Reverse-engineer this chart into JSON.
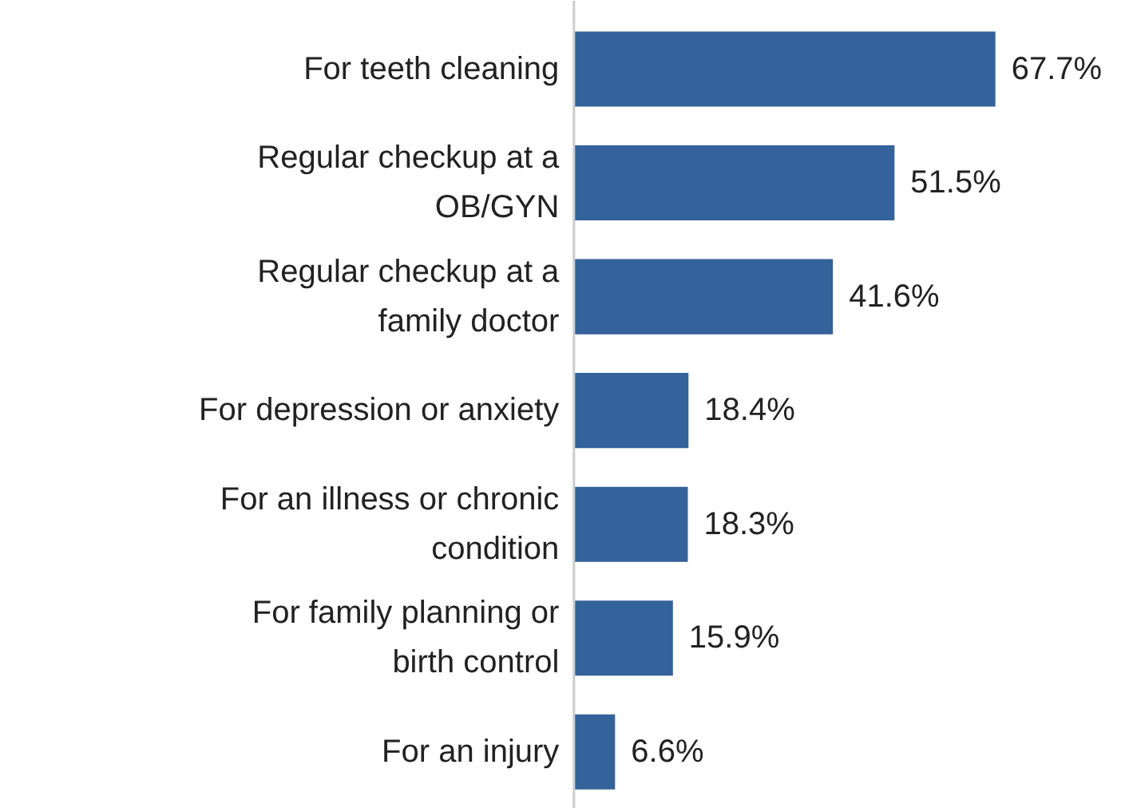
{
  "chart_data": {
    "type": "bar",
    "orientation": "horizontal",
    "categories": [
      "For teeth cleaning",
      "Regular checkup at a OB/GYN",
      "Regular checkup at a family doctor",
      "For depression or anxiety",
      "For an illness or chronic condition",
      "For family planning or birth control",
      "For an injury"
    ],
    "values": [
      67.7,
      51.5,
      41.6,
      18.4,
      18.3,
      15.9,
      6.6
    ],
    "value_labels": [
      "67.7%",
      "51.5%",
      "41.6%",
      "18.4%",
      "18.3%",
      "15.9%",
      "6.6%"
    ],
    "color": "#34629a",
    "grid": false
  }
}
